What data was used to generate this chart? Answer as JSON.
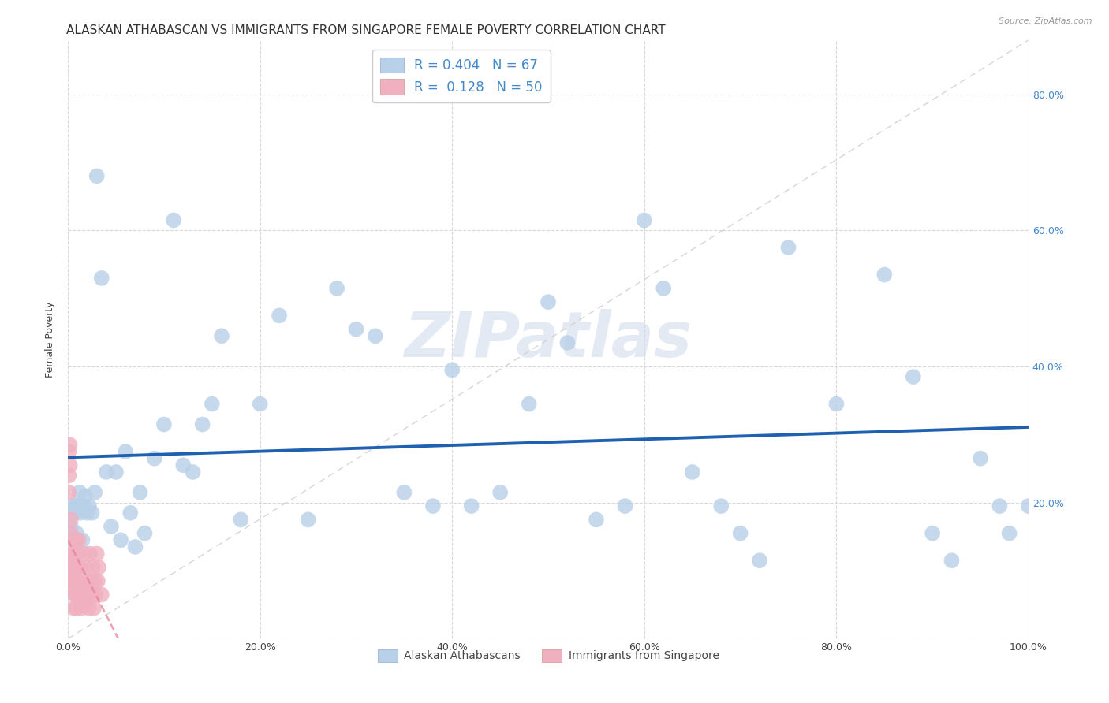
{
  "title": "ALASKAN ATHABASCAN VS IMMIGRANTS FROM SINGAPORE FEMALE POVERTY CORRELATION CHART",
  "source": "Source: ZipAtlas.com",
  "ylabel": "Female Poverty",
  "watermark": "ZIPatlas",
  "blue_R": 0.404,
  "blue_N": 67,
  "pink_R": 0.128,
  "pink_N": 50,
  "blue_color": "#b8d0e8",
  "pink_color": "#f0b0c0",
  "blue_line_color": "#2060b0",
  "pink_line_color": "#e88098",
  "diag_color": "#cccccc",
  "legend_label_blue": "Alaskan Athabascans",
  "legend_label_pink": "Immigrants from Singapore",
  "blue_x": [
    0.003,
    0.005,
    0.007,
    0.008,
    0.009,
    0.01,
    0.012,
    0.013,
    0.015,
    0.016,
    0.018,
    0.02,
    0.022,
    0.025,
    0.028,
    0.03,
    0.035,
    0.04,
    0.045,
    0.05,
    0.055,
    0.06,
    0.065,
    0.07,
    0.075,
    0.08,
    0.09,
    0.1,
    0.11,
    0.12,
    0.13,
    0.14,
    0.15,
    0.16,
    0.18,
    0.2,
    0.22,
    0.25,
    0.28,
    0.3,
    0.32,
    0.35,
    0.38,
    0.4,
    0.42,
    0.45,
    0.48,
    0.5,
    0.52,
    0.55,
    0.58,
    0.6,
    0.62,
    0.65,
    0.68,
    0.7,
    0.72,
    0.75,
    0.8,
    0.85,
    0.88,
    0.9,
    0.92,
    0.95,
    0.97,
    0.98,
    1.0
  ],
  "blue_y": [
    0.165,
    0.195,
    0.185,
    0.195,
    0.155,
    0.195,
    0.215,
    0.185,
    0.145,
    0.195,
    0.21,
    0.185,
    0.195,
    0.185,
    0.215,
    0.68,
    0.53,
    0.245,
    0.165,
    0.245,
    0.145,
    0.275,
    0.185,
    0.135,
    0.215,
    0.155,
    0.265,
    0.315,
    0.615,
    0.255,
    0.245,
    0.315,
    0.345,
    0.445,
    0.175,
    0.345,
    0.475,
    0.175,
    0.515,
    0.455,
    0.445,
    0.215,
    0.195,
    0.395,
    0.195,
    0.215,
    0.345,
    0.495,
    0.435,
    0.175,
    0.195,
    0.615,
    0.515,
    0.245,
    0.195,
    0.155,
    0.115,
    0.575,
    0.345,
    0.535,
    0.385,
    0.155,
    0.115,
    0.265,
    0.195,
    0.155,
    0.195
  ],
  "pink_x": [
    0.001,
    0.001,
    0.001,
    0.002,
    0.002,
    0.002,
    0.003,
    0.003,
    0.003,
    0.004,
    0.004,
    0.004,
    0.005,
    0.005,
    0.005,
    0.006,
    0.006,
    0.006,
    0.007,
    0.007,
    0.008,
    0.008,
    0.009,
    0.009,
    0.01,
    0.01,
    0.011,
    0.011,
    0.012,
    0.013,
    0.014,
    0.015,
    0.016,
    0.017,
    0.018,
    0.019,
    0.02,
    0.021,
    0.022,
    0.023,
    0.024,
    0.025,
    0.026,
    0.027,
    0.028,
    0.029,
    0.03,
    0.031,
    0.032,
    0.035
  ],
  "pink_y": [
    0.275,
    0.24,
    0.215,
    0.105,
    0.285,
    0.255,
    0.155,
    0.175,
    0.115,
    0.125,
    0.095,
    0.075,
    0.145,
    0.085,
    0.085,
    0.045,
    0.125,
    0.085,
    0.065,
    0.105,
    0.145,
    0.065,
    0.045,
    0.085,
    0.125,
    0.105,
    0.065,
    0.145,
    0.075,
    0.105,
    0.045,
    0.065,
    0.085,
    0.125,
    0.055,
    0.105,
    0.065,
    0.085,
    0.045,
    0.125,
    0.085,
    0.065,
    0.105,
    0.045,
    0.085,
    0.065,
    0.125,
    0.085,
    0.105,
    0.065
  ],
  "xlim": [
    0.0,
    1.0
  ],
  "ylim": [
    0.0,
    0.88
  ],
  "xticks": [
    0.0,
    0.2,
    0.4,
    0.6,
    0.8,
    1.0
  ],
  "xtick_labels": [
    "0.0%",
    "20.0%",
    "40.0%",
    "60.0%",
    "80.0%",
    "100.0%"
  ],
  "yticks": [
    0.0,
    0.2,
    0.4,
    0.6,
    0.8
  ],
  "right_ytick_labels": [
    "",
    "20.0%",
    "40.0%",
    "60.0%",
    "80.0%"
  ],
  "grid_color": "#d8d8d8",
  "background_color": "#ffffff",
  "title_fontsize": 11,
  "ylabel_fontsize": 9,
  "tick_fontsize": 9,
  "right_tick_color": "#4488cc",
  "legend_border_color": "#cccccc"
}
